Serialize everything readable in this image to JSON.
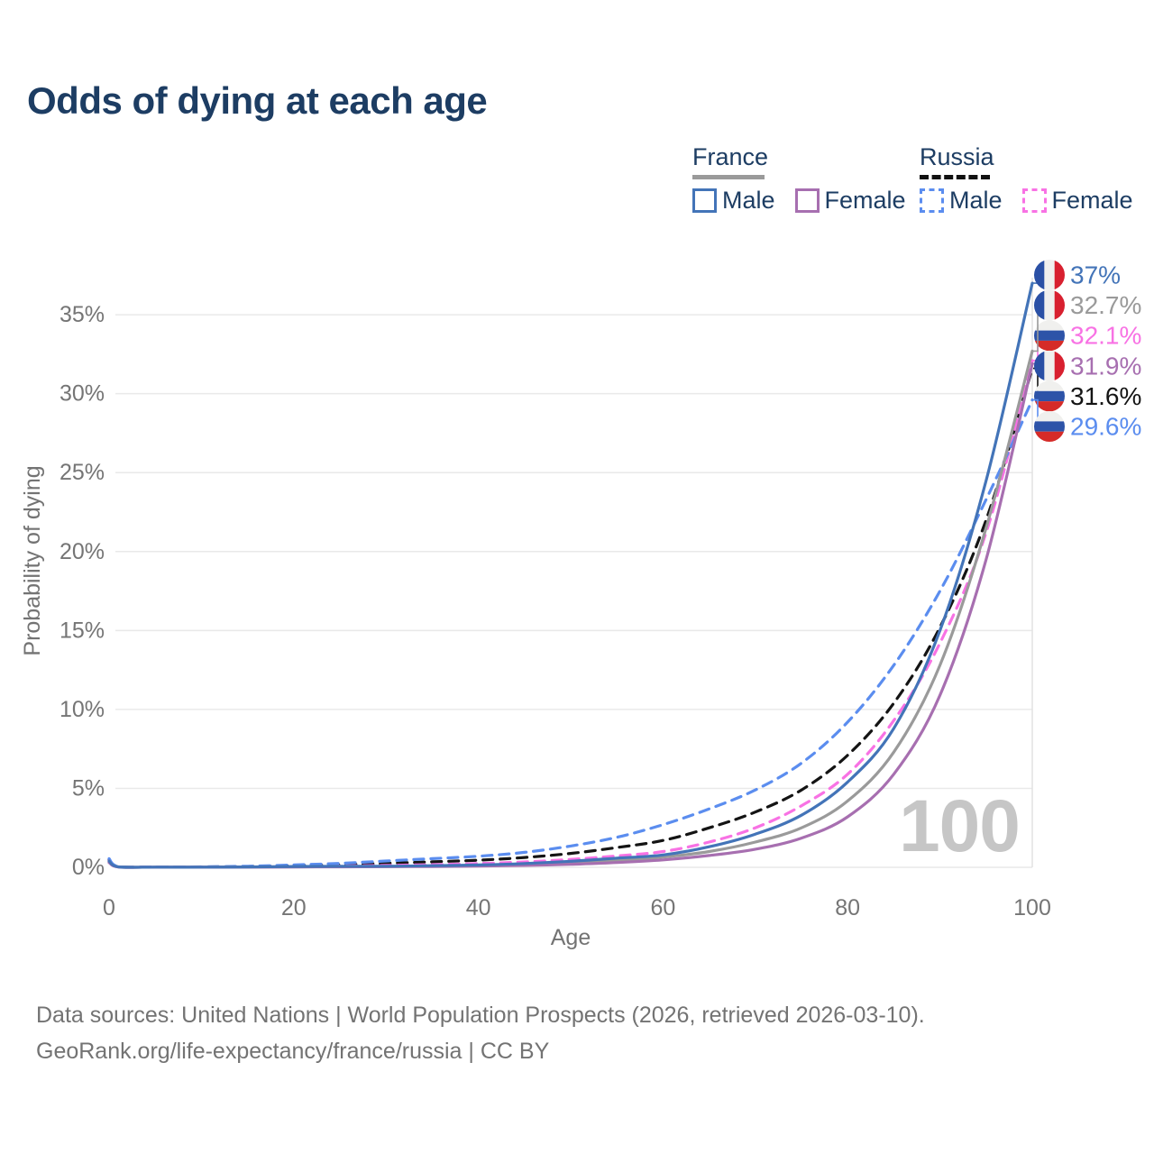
{
  "title": "Odds of dying at each age",
  "legend": {
    "groups": [
      {
        "name": "France",
        "line_style": "solid",
        "underline_color": "#9a9a9a",
        "items": [
          {
            "label": "Male",
            "color": "#4374b8"
          },
          {
            "label": "Female",
            "color": "#a76fb0"
          }
        ]
      },
      {
        "name": "Russia",
        "line_style": "dashed",
        "underline_color": "#111111",
        "items": [
          {
            "label": "Male",
            "color": "#5b8def"
          },
          {
            "label": "Female",
            "color": "#f872e4"
          }
        ]
      }
    ]
  },
  "chart_data": {
    "type": "line",
    "title": "Odds of dying at each age",
    "xlabel": "Age",
    "ylabel": "Probability of dying",
    "xlim": [
      0,
      100
    ],
    "ylim": [
      0,
      37.5
    ],
    "grid": "horizontal",
    "x_ticks": [
      0,
      20,
      40,
      60,
      80,
      100
    ],
    "y_ticks": [
      {
        "value": 0,
        "label": "0%"
      },
      {
        "value": 5,
        "label": "5%"
      },
      {
        "value": 10,
        "label": "10%"
      },
      {
        "value": 15,
        "label": "15%"
      },
      {
        "value": 20,
        "label": "20%"
      },
      {
        "value": 25,
        "label": "25%"
      },
      {
        "value": 30,
        "label": "30%"
      },
      {
        "value": 35,
        "label": "35%"
      }
    ],
    "hover_age": 100,
    "watermark": "100",
    "flag_colors": {
      "france": [
        "#2a50a5",
        "#f0f0ee",
        "#d8202f"
      ],
      "russia": [
        "#f0f0ee",
        "#2d53a8",
        "#d52b28"
      ]
    },
    "series": [
      {
        "name": "Russia total",
        "country": "Russia",
        "sex": "both",
        "color": "#141414",
        "dashed": true,
        "end_label": {
          "text": "31.6%",
          "flag": "russia",
          "slot": 4,
          "value": 31.6
        },
        "points": [
          [
            0,
            0.48
          ],
          [
            1,
            0.04
          ],
          [
            5,
            0.02
          ],
          [
            10,
            0.02
          ],
          [
            15,
            0.05
          ],
          [
            20,
            0.1
          ],
          [
            25,
            0.16
          ],
          [
            30,
            0.25
          ],
          [
            35,
            0.35
          ],
          [
            40,
            0.45
          ],
          [
            45,
            0.62
          ],
          [
            50,
            0.88
          ],
          [
            55,
            1.25
          ],
          [
            60,
            1.7
          ],
          [
            65,
            2.5
          ],
          [
            70,
            3.5
          ],
          [
            75,
            4.9
          ],
          [
            80,
            7.1
          ],
          [
            85,
            10.4
          ],
          [
            90,
            15.2
          ],
          [
            95,
            22.0
          ],
          [
            100,
            31.6
          ]
        ]
      },
      {
        "name": "Russia female",
        "country": "Russia",
        "sex": "female",
        "color": "#f872e4",
        "dashed": true,
        "end_label": {
          "text": "32.1%",
          "flag": "russia",
          "slot": 2,
          "value": 32.1
        },
        "points": [
          [
            0,
            0.42
          ],
          [
            1,
            0.03
          ],
          [
            5,
            0.01
          ],
          [
            10,
            0.02
          ],
          [
            15,
            0.03
          ],
          [
            20,
            0.05
          ],
          [
            25,
            0.08
          ],
          [
            30,
            0.12
          ],
          [
            35,
            0.17
          ],
          [
            40,
            0.24
          ],
          [
            45,
            0.34
          ],
          [
            50,
            0.5
          ],
          [
            55,
            0.72
          ],
          [
            60,
            1.0
          ],
          [
            65,
            1.6
          ],
          [
            70,
            2.5
          ],
          [
            75,
            3.9
          ],
          [
            80,
            5.9
          ],
          [
            85,
            9.3
          ],
          [
            90,
            14.2
          ],
          [
            95,
            21.2
          ],
          [
            100,
            32.1
          ]
        ]
      },
      {
        "name": "Russia male",
        "country": "Russia",
        "sex": "male",
        "color": "#5b8def",
        "dashed": true,
        "end_label": {
          "text": "29.6%",
          "flag": "russia",
          "slot": 5,
          "value": 29.6
        },
        "points": [
          [
            0,
            0.55
          ],
          [
            1,
            0.05
          ],
          [
            5,
            0.02
          ],
          [
            10,
            0.03
          ],
          [
            15,
            0.07
          ],
          [
            20,
            0.15
          ],
          [
            25,
            0.25
          ],
          [
            30,
            0.4
          ],
          [
            35,
            0.55
          ],
          [
            40,
            0.7
          ],
          [
            45,
            0.95
          ],
          [
            50,
            1.35
          ],
          [
            55,
            1.9
          ],
          [
            60,
            2.7
          ],
          [
            65,
            3.7
          ],
          [
            70,
            4.9
          ],
          [
            75,
            6.6
          ],
          [
            80,
            9.2
          ],
          [
            85,
            12.8
          ],
          [
            90,
            17.5
          ],
          [
            95,
            23.3
          ],
          [
            100,
            29.6
          ]
        ]
      },
      {
        "name": "France total",
        "country": "France",
        "sex": "both",
        "color": "#9a9a9a",
        "dashed": false,
        "end_label": {
          "text": "32.7%",
          "flag": "france",
          "slot": 1,
          "value": 32.7
        },
        "points": [
          [
            0,
            0.35
          ],
          [
            1,
            0.03
          ],
          [
            5,
            0.01
          ],
          [
            10,
            0.01
          ],
          [
            15,
            0.02
          ],
          [
            20,
            0.03
          ],
          [
            25,
            0.04
          ],
          [
            30,
            0.05
          ],
          [
            35,
            0.07
          ],
          [
            40,
            0.11
          ],
          [
            45,
            0.17
          ],
          [
            50,
            0.28
          ],
          [
            55,
            0.44
          ],
          [
            60,
            0.65
          ],
          [
            65,
            1.0
          ],
          [
            70,
            1.6
          ],
          [
            75,
            2.5
          ],
          [
            80,
            4.2
          ],
          [
            85,
            7.3
          ],
          [
            90,
            12.8
          ],
          [
            95,
            21.5
          ],
          [
            100,
            32.7
          ]
        ]
      },
      {
        "name": "France female",
        "country": "France",
        "sex": "female",
        "color": "#a76fb0",
        "dashed": false,
        "end_label": {
          "text": "31.9%",
          "flag": "france",
          "slot": 3,
          "value": 31.9
        },
        "points": [
          [
            0,
            0.3
          ],
          [
            1,
            0.02
          ],
          [
            5,
            0.01
          ],
          [
            10,
            0.01
          ],
          [
            15,
            0.01
          ],
          [
            20,
            0.02
          ],
          [
            25,
            0.03
          ],
          [
            30,
            0.04
          ],
          [
            35,
            0.05
          ],
          [
            40,
            0.08
          ],
          [
            45,
            0.12
          ],
          [
            50,
            0.19
          ],
          [
            55,
            0.3
          ],
          [
            60,
            0.47
          ],
          [
            65,
            0.75
          ],
          [
            70,
            1.15
          ],
          [
            75,
            1.85
          ],
          [
            80,
            3.2
          ],
          [
            85,
            5.9
          ],
          [
            90,
            10.9
          ],
          [
            95,
            19.5
          ],
          [
            100,
            31.9
          ]
        ]
      },
      {
        "name": "France male",
        "country": "France",
        "sex": "male",
        "color": "#4374b8",
        "dashed": false,
        "end_label": {
          "text": "37%",
          "flag": "france",
          "slot": 0,
          "value": 37.0
        },
        "points": [
          [
            0,
            0.4
          ],
          [
            1,
            0.03
          ],
          [
            5,
            0.01
          ],
          [
            10,
            0.01
          ],
          [
            15,
            0.02
          ],
          [
            20,
            0.05
          ],
          [
            25,
            0.06
          ],
          [
            30,
            0.07
          ],
          [
            35,
            0.1
          ],
          [
            40,
            0.15
          ],
          [
            45,
            0.24
          ],
          [
            50,
            0.38
          ],
          [
            55,
            0.58
          ],
          [
            60,
            0.78
          ],
          [
            65,
            1.3
          ],
          [
            70,
            2.1
          ],
          [
            75,
            3.3
          ],
          [
            80,
            5.4
          ],
          [
            85,
            8.8
          ],
          [
            90,
            15.0
          ],
          [
            95,
            24.5
          ],
          [
            100,
            37.0
          ]
        ]
      }
    ]
  },
  "footer": {
    "line1": "Data sources: United Nations | World Population Prospects (2026, retrieved 2026-03-10).",
    "line2": "GeoRank.org/life-expectancy/france/russia | CC BY"
  }
}
